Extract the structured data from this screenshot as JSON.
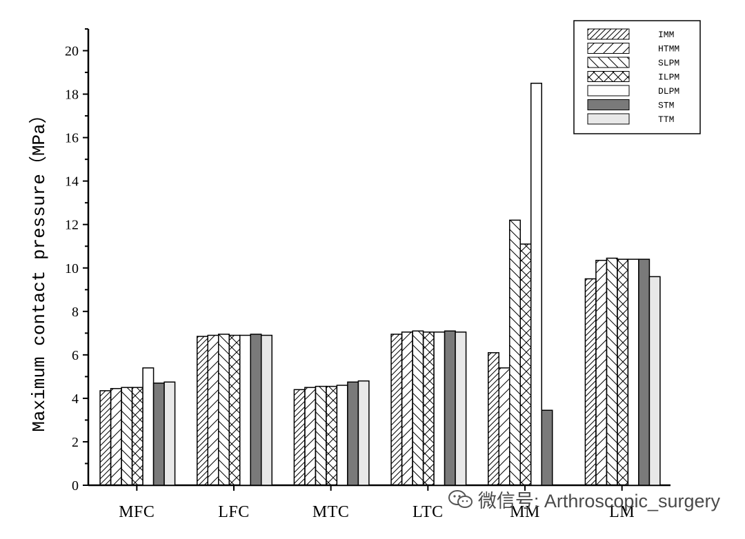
{
  "chart_data": {
    "type": "bar",
    "title": "",
    "xlabel": "",
    "ylabel": "Maximum contact pressure（MPa）",
    "ylim": [
      0,
      21
    ],
    "yticks": [
      0,
      2,
      4,
      6,
      8,
      10,
      12,
      14,
      16,
      18,
      20
    ],
    "grid": false,
    "legend_position": "top-right",
    "categories": [
      "MFC",
      "LFC",
      "MTC",
      "LTC",
      "MM",
      "LM"
    ],
    "series": [
      {
        "name": "IMM",
        "pattern": "diag-right",
        "values": [
          4.35,
          6.85,
          4.4,
          6.95,
          6.1,
          9.5
        ]
      },
      {
        "name": "HTMM",
        "pattern": "diag-right-wide",
        "values": [
          4.45,
          6.9,
          4.5,
          7.05,
          5.4,
          10.35
        ]
      },
      {
        "name": "SLPM",
        "pattern": "diag-left",
        "values": [
          4.5,
          6.95,
          4.55,
          7.1,
          12.2,
          10.45
        ]
      },
      {
        "name": "ILPM",
        "pattern": "cross",
        "values": [
          4.5,
          6.9,
          4.55,
          7.05,
          11.1,
          10.4
        ]
      },
      {
        "name": "DLPM",
        "pattern": "white",
        "values": [
          5.4,
          6.9,
          4.6,
          7.05,
          18.5,
          10.4
        ]
      },
      {
        "name": "STM",
        "pattern": "dark",
        "values": [
          4.7,
          6.95,
          4.75,
          7.1,
          3.45,
          10.4
        ]
      },
      {
        "name": "TTM",
        "pattern": "light",
        "values": [
          4.75,
          6.9,
          4.8,
          7.05,
          null,
          9.6
        ]
      }
    ]
  },
  "watermark": {
    "text": "微信号: Arthroscopic_surgery",
    "icon": "wechat-icon"
  },
  "colors": {
    "axis": "#000000",
    "dark_fill": "#7a7a7a",
    "light_fill": "#e8e8e8",
    "white_fill": "#ffffff"
  }
}
